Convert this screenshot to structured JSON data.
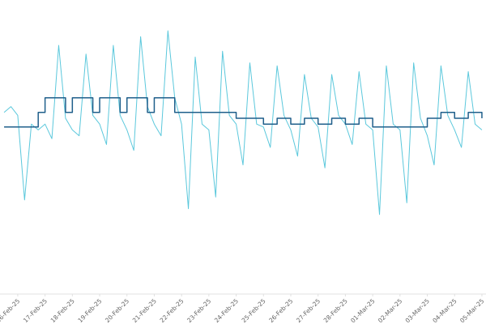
{
  "chart_data": {
    "type": "line",
    "x": [
      -0.5,
      -0.25,
      0,
      0.25,
      0.5,
      0.75,
      1,
      1.25,
      1.5,
      1.75,
      2,
      2.25,
      2.5,
      2.75,
      3,
      3.25,
      3.5,
      3.75,
      4,
      4.25,
      4.5,
      4.75,
      5,
      5.25,
      5.5,
      5.75,
      6,
      6.25,
      6.5,
      6.75,
      7,
      7.25,
      7.5,
      7.75,
      8,
      8.25,
      8.5,
      8.75,
      9,
      9.25,
      9.5,
      9.75,
      10,
      10.25,
      10.5,
      10.75,
      11,
      11.25,
      11.5,
      11.75,
      12,
      12.25,
      12.5,
      12.75,
      13,
      13.25,
      13.5,
      13.75,
      14,
      14.25,
      14.5,
      14.75,
      15,
      15.25,
      15.5,
      15.75,
      16,
      16.25,
      16.5,
      16.75,
      17
    ],
    "series": [
      {
        "color": "#5bc8dc",
        "values": [
          62,
          64,
          61,
          32,
          58,
          56,
          58,
          53,
          85,
          60,
          56,
          54,
          82,
          61,
          58,
          51,
          85,
          61,
          56,
          49,
          88,
          64,
          58,
          54,
          90,
          67,
          58,
          29,
          81,
          58,
          56,
          33,
          83,
          61,
          58,
          44,
          79,
          58,
          57,
          50,
          78,
          61,
          56,
          47,
          75,
          60,
          57,
          43,
          75,
          61,
          58,
          51,
          76,
          58,
          56,
          27,
          78,
          58,
          56,
          31,
          79,
          60,
          54,
          44,
          78,
          61,
          56,
          50,
          76,
          58,
          56
        ]
      },
      {
        "color": "#1f5f8b",
        "step": "post",
        "values": [
          57,
          57,
          57,
          57,
          57,
          62,
          67,
          67,
          67,
          62,
          67,
          67,
          67,
          62,
          67,
          67,
          67,
          62,
          67,
          67,
          67,
          62,
          67,
          67,
          67,
          62,
          62,
          62,
          62,
          62,
          62,
          62,
          62,
          62,
          60,
          60,
          60,
          60,
          58,
          58,
          60,
          60,
          58,
          58,
          60,
          60,
          58,
          58,
          60,
          60,
          58,
          58,
          60,
          60,
          57,
          57,
          57,
          57,
          57,
          57,
          57,
          57,
          60,
          60,
          62,
          62,
          60,
          60,
          62,
          62,
          60
        ]
      }
    ],
    "xlim": [
      -0.65,
      17.15
    ],
    "ylim": [
      0,
      100
    ],
    "xticks": [
      {
        "value": 0,
        "label": "16-Feb-25"
      },
      {
        "value": 1,
        "label": "17-Feb-25"
      },
      {
        "value": 2,
        "label": "18-Feb-25"
      },
      {
        "value": 3,
        "label": "19-Feb-25"
      },
      {
        "value": 4,
        "label": "20-Feb-25"
      },
      {
        "value": 5,
        "label": "21-Feb-25"
      },
      {
        "value": 6,
        "label": "22-Feb-25"
      },
      {
        "value": 7,
        "label": "23-Feb-25"
      },
      {
        "value": 8,
        "label": "24-Feb-25"
      },
      {
        "value": 9,
        "label": "25-Feb-25"
      },
      {
        "value": 10,
        "label": "26-Feb-25"
      },
      {
        "value": 11,
        "label": "27-Feb-25"
      },
      {
        "value": 12,
        "label": "28-Feb-25"
      },
      {
        "value": 13,
        "label": "01-Mar-25"
      },
      {
        "value": 14,
        "label": "02-Mar-25"
      },
      {
        "value": 15,
        "label": "03-Mar-25"
      },
      {
        "value": 16,
        "label": "04-Mar-25"
      },
      {
        "value": 17,
        "label": "05-Mar-25"
      }
    ]
  }
}
